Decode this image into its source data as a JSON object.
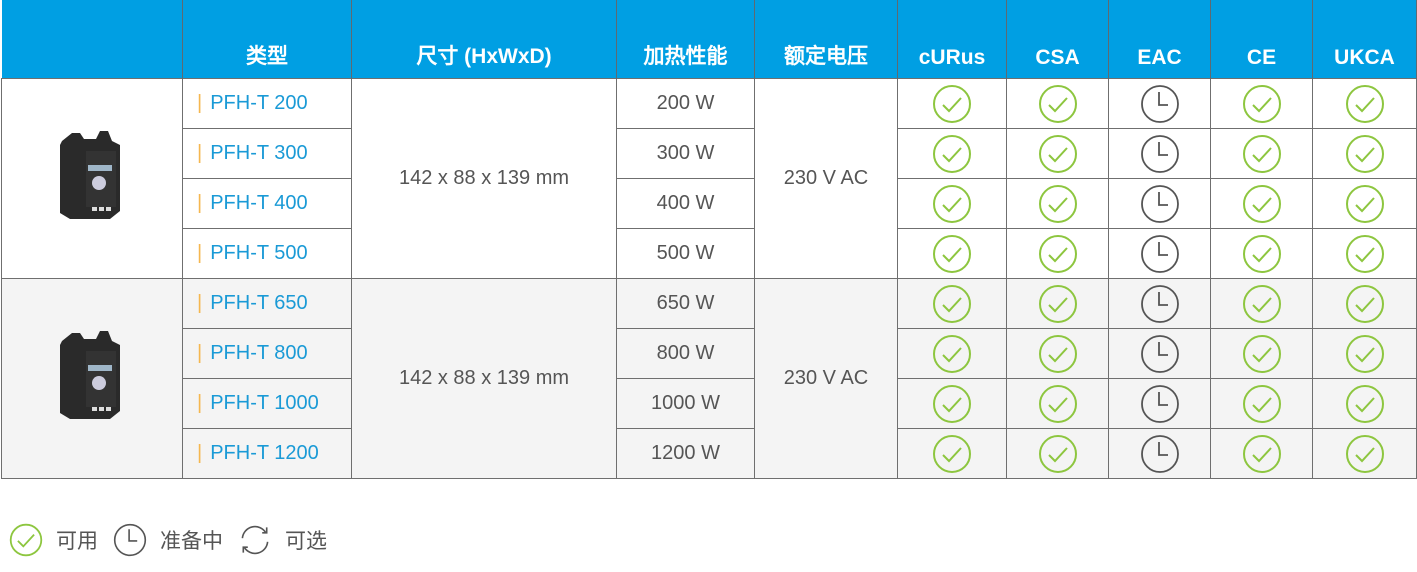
{
  "headers": [
    "",
    "类型",
    "尺寸 (HxWxD)",
    "加热性能",
    "额定电压",
    "cURus",
    "CSA",
    "EAC",
    "CE",
    "UKCA"
  ],
  "colors": {
    "header": "#009fe3",
    "available": "#8dc63f",
    "pending": "#555555",
    "model": "#1a9ad6",
    "accent": "#f5b74f"
  },
  "groups": [
    {
      "dimensions": "142 x 88 x 139 mm",
      "voltage": "230 V AC",
      "image": "heater-product-image",
      "rows": [
        {
          "model": "PFH-T 200",
          "power": "200 W",
          "certs": [
            "available",
            "available",
            "pending",
            "available",
            "available"
          ]
        },
        {
          "model": "PFH-T 300",
          "power": "300 W",
          "certs": [
            "available",
            "available",
            "pending",
            "available",
            "available"
          ]
        },
        {
          "model": "PFH-T 400",
          "power": "400 W",
          "certs": [
            "available",
            "available",
            "pending",
            "available",
            "available"
          ]
        },
        {
          "model": "PFH-T 500",
          "power": "500 W",
          "certs": [
            "available",
            "available",
            "pending",
            "available",
            "available"
          ]
        }
      ]
    },
    {
      "dimensions": "142 x 88 x 139 mm",
      "voltage": "230 V AC",
      "image": "heater-product-image",
      "rows": [
        {
          "model": "PFH-T 650",
          "power": "650 W",
          "certs": [
            "available",
            "available",
            "pending",
            "available",
            "available"
          ]
        },
        {
          "model": "PFH-T 800",
          "power": "800 W",
          "certs": [
            "available",
            "available",
            "pending",
            "available",
            "available"
          ]
        },
        {
          "model": "PFH-T 1000",
          "power": "1000 W",
          "certs": [
            "available",
            "available",
            "pending",
            "available",
            "available"
          ]
        },
        {
          "model": "PFH-T 1200",
          "power": "1200 W",
          "certs": [
            "available",
            "available",
            "pending",
            "available",
            "available"
          ]
        }
      ]
    }
  ],
  "legend": {
    "available": "可用",
    "pending": "准备中",
    "optional": "可选"
  }
}
